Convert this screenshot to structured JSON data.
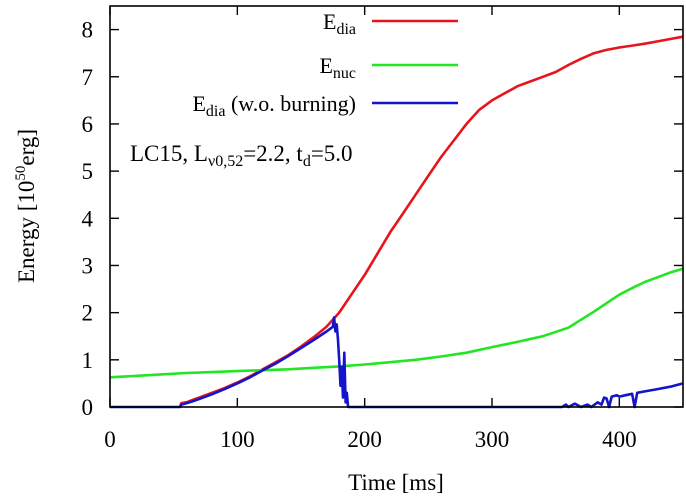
{
  "chart_data": {
    "type": "line",
    "xlabel": "Time [ms]",
    "ylabel": {
      "prefix": "Energy [10",
      "exponent": "50",
      "suffix": "erg]"
    },
    "xlim": [
      0,
      450
    ],
    "ylim": [
      0,
      8.5
    ],
    "xticks": [
      0,
      100,
      200,
      300,
      400
    ],
    "yticks": [
      0,
      1,
      2,
      3,
      4,
      5,
      6,
      7,
      8
    ],
    "grid": false,
    "legend_position": "top-right",
    "annotation": {
      "model": "LC15, L",
      "lum_sub": "ν0,52",
      "lum_value": "=2.2, t",
      "t_sub": "d",
      "t_value": "=5.0"
    },
    "series": [
      {
        "name": "E_dia",
        "label_main": "E",
        "label_sub": "dia",
        "label_suffix": "",
        "color": "#e8141c",
        "points": [
          [
            55,
            0
          ],
          [
            56,
            0.08
          ],
          [
            60,
            0.1
          ],
          [
            65,
            0.15
          ],
          [
            70,
            0.2
          ],
          [
            80,
            0.3
          ],
          [
            90,
            0.4
          ],
          [
            100,
            0.52
          ],
          [
            110,
            0.65
          ],
          [
            120,
            0.8
          ],
          [
            130,
            0.95
          ],
          [
            140,
            1.1
          ],
          [
            150,
            1.28
          ],
          [
            160,
            1.48
          ],
          [
            170,
            1.7
          ],
          [
            180,
            2.0
          ],
          [
            190,
            2.4
          ],
          [
            200,
            2.8
          ],
          [
            210,
            3.25
          ],
          [
            220,
            3.7
          ],
          [
            230,
            4.1
          ],
          [
            240,
            4.5
          ],
          [
            250,
            4.9
          ],
          [
            260,
            5.3
          ],
          [
            270,
            5.65
          ],
          [
            280,
            6.0
          ],
          [
            290,
            6.3
          ],
          [
            300,
            6.5
          ],
          [
            310,
            6.65
          ],
          [
            320,
            6.8
          ],
          [
            330,
            6.9
          ],
          [
            340,
            7.0
          ],
          [
            350,
            7.1
          ],
          [
            360,
            7.25
          ],
          [
            370,
            7.38
          ],
          [
            380,
            7.5
          ],
          [
            390,
            7.57
          ],
          [
            400,
            7.62
          ],
          [
            410,
            7.66
          ],
          [
            420,
            7.7
          ],
          [
            430,
            7.75
          ],
          [
            440,
            7.8
          ],
          [
            450,
            7.85
          ]
        ]
      },
      {
        "name": "E_nuc",
        "label_main": "E",
        "label_sub": "nuc",
        "label_suffix": "",
        "color": "#22e622",
        "points": [
          [
            0,
            0.63
          ],
          [
            20,
            0.66
          ],
          [
            40,
            0.69
          ],
          [
            60,
            0.72
          ],
          [
            80,
            0.74
          ],
          [
            100,
            0.76
          ],
          [
            120,
            0.78
          ],
          [
            140,
            0.8
          ],
          [
            160,
            0.83
          ],
          [
            180,
            0.86
          ],
          [
            200,
            0.9
          ],
          [
            220,
            0.95
          ],
          [
            240,
            1.0
          ],
          [
            260,
            1.07
          ],
          [
            280,
            1.15
          ],
          [
            300,
            1.27
          ],
          [
            320,
            1.38
          ],
          [
            340,
            1.5
          ],
          [
            360,
            1.68
          ],
          [
            370,
            1.85
          ],
          [
            380,
            2.02
          ],
          [
            390,
            2.2
          ],
          [
            400,
            2.38
          ],
          [
            410,
            2.52
          ],
          [
            420,
            2.65
          ],
          [
            430,
            2.75
          ],
          [
            440,
            2.85
          ],
          [
            450,
            2.93
          ]
        ]
      },
      {
        "name": "E_dia (w.o. burning)",
        "label_main": "E",
        "label_sub": "dia",
        "label_suffix": " (w.o. burning)",
        "color": "#1414cc",
        "points": [
          [
            0,
            0
          ],
          [
            55,
            0
          ],
          [
            56,
            0.05
          ],
          [
            60,
            0.08
          ],
          [
            65,
            0.12
          ],
          [
            70,
            0.17
          ],
          [
            80,
            0.27
          ],
          [
            90,
            0.38
          ],
          [
            100,
            0.5
          ],
          [
            110,
            0.63
          ],
          [
            120,
            0.78
          ],
          [
            130,
            0.92
          ],
          [
            140,
            1.08
          ],
          [
            150,
            1.25
          ],
          [
            160,
            1.42
          ],
          [
            170,
            1.6
          ],
          [
            175,
            1.7
          ],
          [
            176,
            1.9
          ],
          [
            177,
            1.6
          ],
          [
            178,
            1.75
          ],
          [
            179,
            1.45
          ],
          [
            180,
            1.0
          ],
          [
            181,
            0.45
          ],
          [
            182,
            0.85
          ],
          [
            183,
            0.2
          ],
          [
            184,
            1.15
          ],
          [
            185,
            0.1
          ],
          [
            186,
            0.3
          ],
          [
            187,
            0
          ],
          [
            200,
            0
          ],
          [
            300,
            0
          ],
          [
            355,
            0
          ],
          [
            358,
            0.05
          ],
          [
            360,
            0
          ],
          [
            365,
            0.07
          ],
          [
            370,
            0
          ],
          [
            375,
            0.05
          ],
          [
            378,
            0
          ],
          [
            383,
            0.1
          ],
          [
            386,
            0.05
          ],
          [
            388,
            0.2
          ],
          [
            390,
            0.18
          ],
          [
            392,
            0
          ],
          [
            394,
            0.22
          ],
          [
            398,
            0.25
          ],
          [
            400,
            0.22
          ],
          [
            405,
            0.25
          ],
          [
            410,
            0.28
          ],
          [
            412,
            0
          ],
          [
            414,
            0.3
          ],
          [
            420,
            0.33
          ],
          [
            430,
            0.38
          ],
          [
            440,
            0.43
          ],
          [
            450,
            0.5
          ]
        ]
      }
    ]
  }
}
